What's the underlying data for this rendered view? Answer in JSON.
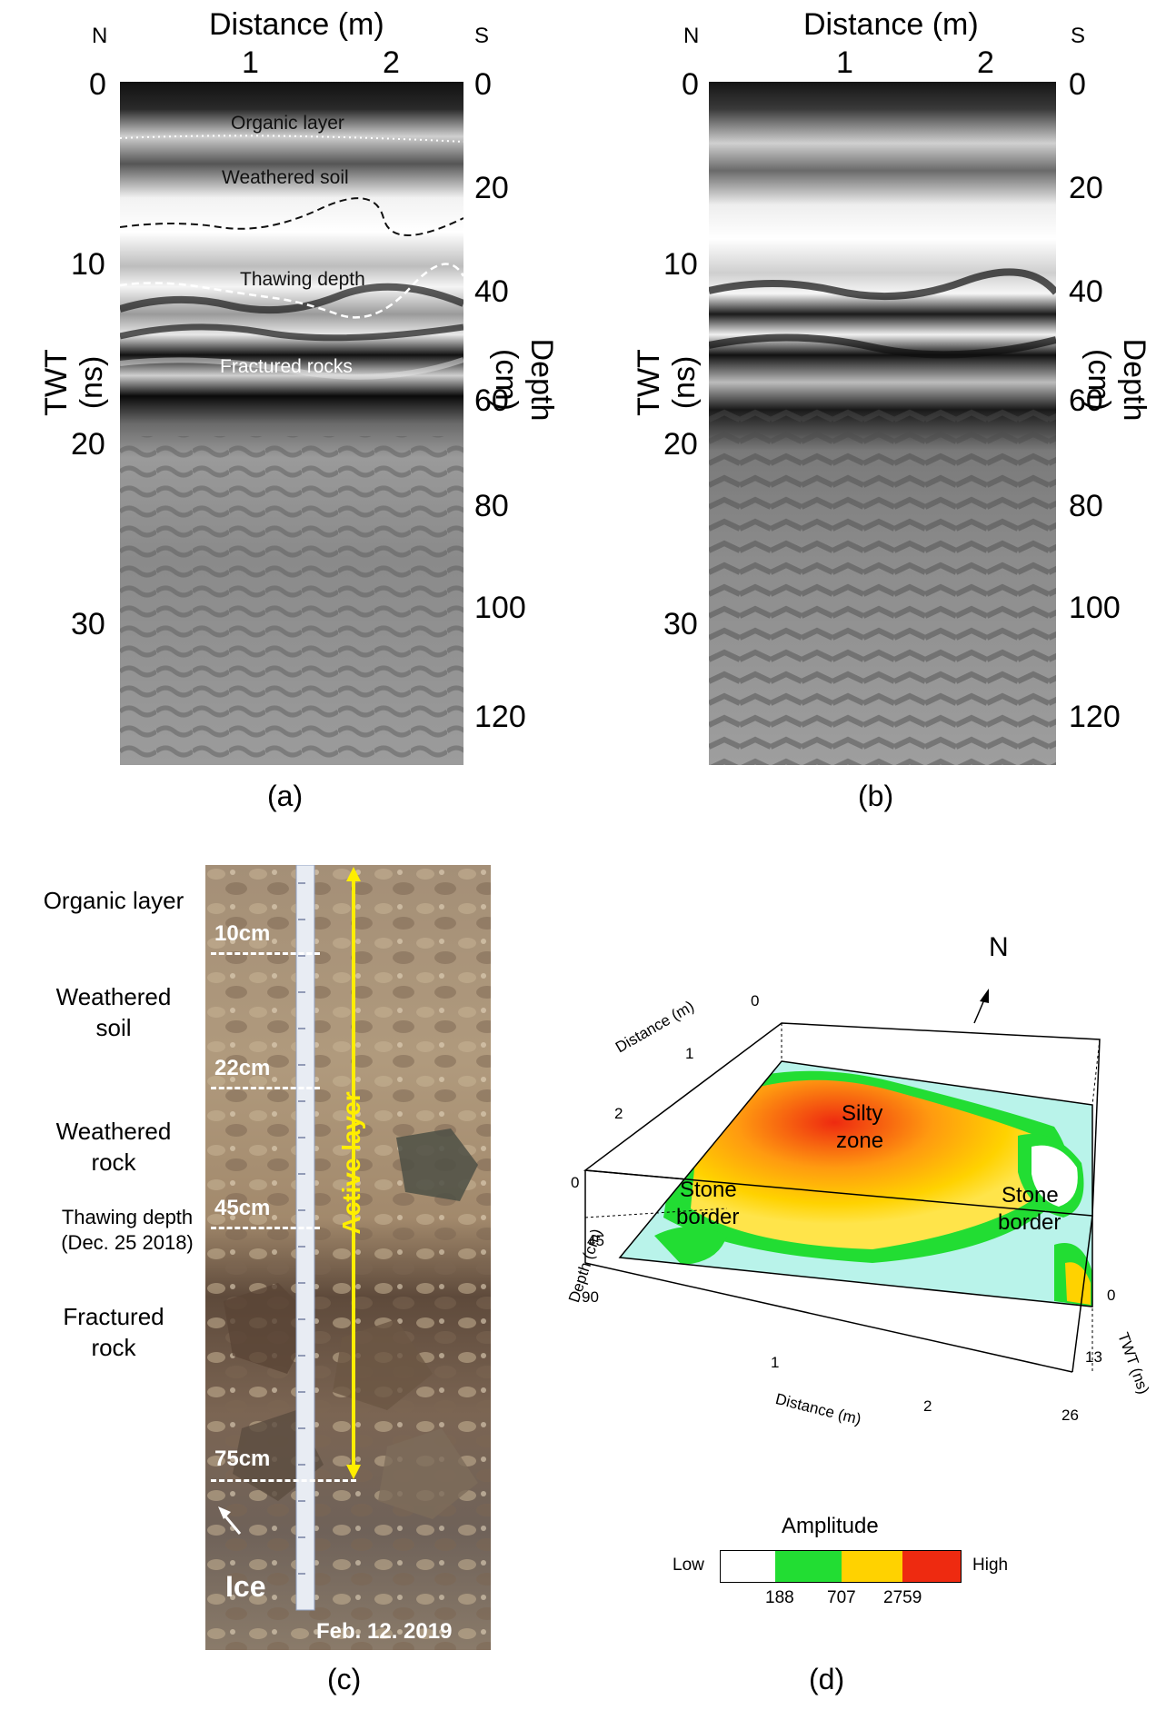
{
  "panel_a": {
    "north": "N",
    "south": "S",
    "x_title": "Distance (m)",
    "x_ticks": [
      "1",
      "2"
    ],
    "y_left_title": "TWT (ns)",
    "y_left_ticks": [
      "0",
      "10",
      "20",
      "30"
    ],
    "y_right_title": "Depth (cm)",
    "y_right_ticks": [
      "0",
      "20",
      "40",
      "60",
      "80",
      "100",
      "120"
    ],
    "labels": {
      "organic": "Organic layer",
      "weathered": "Weathered soil",
      "thawing": "Thawing depth",
      "fractured": "Fractured rocks"
    },
    "caption": "(a)"
  },
  "panel_b": {
    "north": "N",
    "south": "S",
    "x_title": "Distance (m)",
    "x_ticks": [
      "1",
      "2"
    ],
    "y_left_title": "TWT (ns)",
    "y_left_ticks": [
      "0",
      "10",
      "20",
      "30"
    ],
    "y_right_title": "Depth (cm)",
    "y_right_ticks": [
      "0",
      "20",
      "40",
      "60",
      "80",
      "100",
      "120"
    ],
    "caption": "(b)"
  },
  "panel_c": {
    "layers": {
      "organic": "Organic layer",
      "weathered_soil_1": "Weathered",
      "weathered_soil_2": "soil",
      "weathered_rock_1": "Weathered",
      "weathered_rock_2": "rock",
      "thawing_1": "Thawing depth",
      "thawing_2": "(Dec. 25 2018)",
      "fractured_1": "Fractured",
      "fractured_2": "rock"
    },
    "depth_marks": [
      "10cm",
      "22cm",
      "45cm",
      "75cm"
    ],
    "active_layer": "Active layer",
    "ice": "Ice",
    "date": "Feb. 12. 2019",
    "caption": "(c)"
  },
  "panel_d": {
    "north": "N",
    "labels": {
      "silty_1": "Silty",
      "silty_2": "zone",
      "stone_left_1": "Stone",
      "stone_left_2": "border",
      "stone_right_1": "Stone",
      "stone_right_2": "border"
    },
    "axes": {
      "distance_top": "Distance (m)",
      "distance_top_ticks": [
        "0",
        "1",
        "2"
      ],
      "depth": "Depth (cm)",
      "depth_ticks": [
        "0",
        "45",
        "90"
      ],
      "distance_bottom": "Distance (m)",
      "distance_bottom_ticks": [
        "1",
        "2"
      ],
      "twt": "TWT (ns)",
      "twt_ticks": [
        "0",
        "13",
        "26"
      ]
    },
    "legend": {
      "title": "Amplitude",
      "low": "Low",
      "high": "High",
      "ticks": [
        "188",
        "707",
        "2759"
      ],
      "colors": [
        "#ffffff",
        "#22dd33",
        "#ffd200",
        "#ee2a10"
      ]
    },
    "caption": "(d)"
  }
}
